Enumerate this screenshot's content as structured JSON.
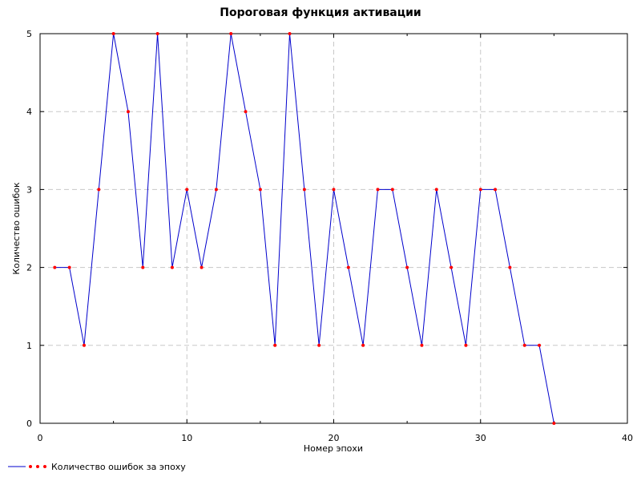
{
  "chart_data": {
    "type": "line",
    "title": "Пороговая функция активации",
    "xlabel": "Номер эпохи",
    "ylabel": "Количество ошибок",
    "xlim": [
      0,
      40
    ],
    "ylim": [
      0,
      5
    ],
    "x_ticks": [
      "0",
      "10",
      "20",
      "30",
      "40"
    ],
    "y_ticks": [
      "0",
      "1",
      "2",
      "3",
      "4",
      "5"
    ],
    "grid": true,
    "legend_position": "bottom-left",
    "colors": {
      "line": "#0000cc",
      "marker": "#ff0000",
      "grid": "#c8c8c8"
    },
    "series": [
      {
        "name": "Количество ошибок за эпоху",
        "x": [
          1,
          2,
          3,
          4,
          5,
          6,
          7,
          8,
          9,
          10,
          11,
          12,
          13,
          14,
          15,
          16,
          17,
          18,
          19,
          20,
          21,
          22,
          23,
          24,
          25,
          26,
          27,
          28,
          29,
          30,
          31,
          32,
          33,
          34,
          35
        ],
        "values": [
          2,
          2,
          1,
          3,
          5,
          4,
          2,
          5,
          2,
          3,
          2,
          3,
          5,
          4,
          3,
          1,
          5,
          3,
          1,
          3,
          2,
          1,
          3,
          3,
          2,
          1,
          3,
          2,
          1,
          3,
          3,
          2,
          1,
          1,
          0
        ]
      }
    ]
  }
}
